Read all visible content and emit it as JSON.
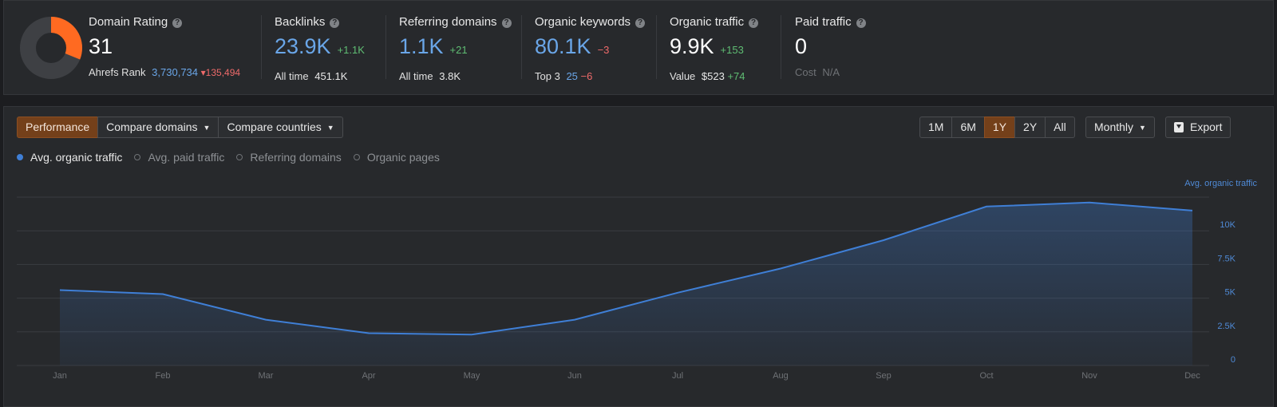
{
  "metrics": {
    "domain_rating": {
      "label": "Domain Rating",
      "value": "31",
      "rank_label": "Ahrefs Rank",
      "rank_value": "3,730,734",
      "rank_delta": "135,494",
      "donut_fraction": 0.31
    },
    "backlinks": {
      "label": "Backlinks",
      "value": "23.9K",
      "delta": "+1.1K",
      "sub_label": "All time",
      "sub_value": "451.1K"
    },
    "referring_domains": {
      "label": "Referring domains",
      "value": "1.1K",
      "delta": "+21",
      "sub_label": "All time",
      "sub_value": "3.8K"
    },
    "organic_keywords": {
      "label": "Organic keywords",
      "value": "80.1K",
      "delta": "−3",
      "sub_label": "Top 3",
      "sub_value": "25",
      "sub_delta": "−6"
    },
    "organic_traffic": {
      "label": "Organic traffic",
      "value": "9.9K",
      "delta": "+153",
      "sub_label": "Value",
      "sub_value": "$523",
      "sub_delta": "+74"
    },
    "paid_traffic": {
      "label": "Paid traffic",
      "value": "0",
      "sub_label": "Cost",
      "sub_value": "N/A"
    }
  },
  "help_icon": "?",
  "toolbar": {
    "tabs": [
      "Performance",
      "Compare domains",
      "Compare countries"
    ],
    "active_tab": "Performance",
    "ranges": [
      "1M",
      "6M",
      "1Y",
      "2Y",
      "All"
    ],
    "active_range": "1Y",
    "interval": "Monthly",
    "export": "Export"
  },
  "legend": [
    {
      "label": "Avg. organic traffic",
      "active": true
    },
    {
      "label": "Avg. paid traffic",
      "active": false
    },
    {
      "label": "Referring domains",
      "active": false
    },
    {
      "label": "Organic pages",
      "active": false
    }
  ],
  "colors": {
    "series": "#3f7fd6",
    "axis_text": "#4f8ad6",
    "month_text": "#6f7276",
    "grid": "#3a3c40",
    "active_orange": "#74401a",
    "donut_fill": "#ff6a21",
    "donut_track": "#3e4044",
    "positive": "#5fbd73",
    "negative": "#ee6a6a"
  },
  "chart_data": {
    "type": "area",
    "title": "",
    "ylabel": "Avg. organic traffic",
    "x": [
      "Jan",
      "Feb",
      "Mar",
      "Apr",
      "May",
      "Jun",
      "Jul",
      "Aug",
      "Sep",
      "Oct",
      "Nov",
      "Dec"
    ],
    "series": [
      {
        "name": "Avg. organic traffic",
        "values": [
          5600,
          5300,
          3400,
          2400,
          2300,
          3400,
          5400,
          7200,
          9300,
          11800,
          12100,
          11500
        ]
      }
    ],
    "y_ticks": [
      "0",
      "2.5K",
      "5K",
      "7.5K",
      "10K"
    ],
    "y_axis_side": "right",
    "grid": true
  }
}
